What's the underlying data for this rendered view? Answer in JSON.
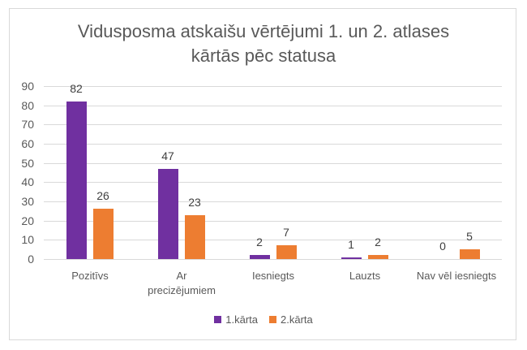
{
  "chart_data": {
    "type": "bar",
    "title": "Vidusposma atskaišu vērtējumi 1. un 2. atlases kārtās pēc statusa",
    "title_lines": [
      "Vidusposma atskaišu vērtējumi 1. un 2. atlases",
      "kārtās pēc statusa"
    ],
    "categories": [
      "Pozitīvs",
      "Ar precizējumiem",
      "Iesniegts",
      "Lauzts",
      "Nav vēl iesniegts"
    ],
    "category_lines": [
      [
        "Pozitīvs"
      ],
      [
        "Ar",
        "precizējumiem"
      ],
      [
        "Iesniegts"
      ],
      [
        "Lauzts"
      ],
      [
        "Nav vēl iesniegts"
      ]
    ],
    "series": [
      {
        "name": "1.kārta",
        "color": "#7030a0",
        "values": [
          82,
          47,
          2,
          1,
          0
        ]
      },
      {
        "name": "2.kārta",
        "color": "#ed7d31",
        "values": [
          26,
          23,
          7,
          2,
          5
        ]
      }
    ],
    "xlabel": "",
    "ylabel": "",
    "ylim": [
      0,
      90
    ],
    "yticks": [
      0,
      10,
      20,
      30,
      40,
      50,
      60,
      70,
      80,
      90
    ],
    "grid": true,
    "data_labels": true,
    "legend_position": "bottom"
  }
}
